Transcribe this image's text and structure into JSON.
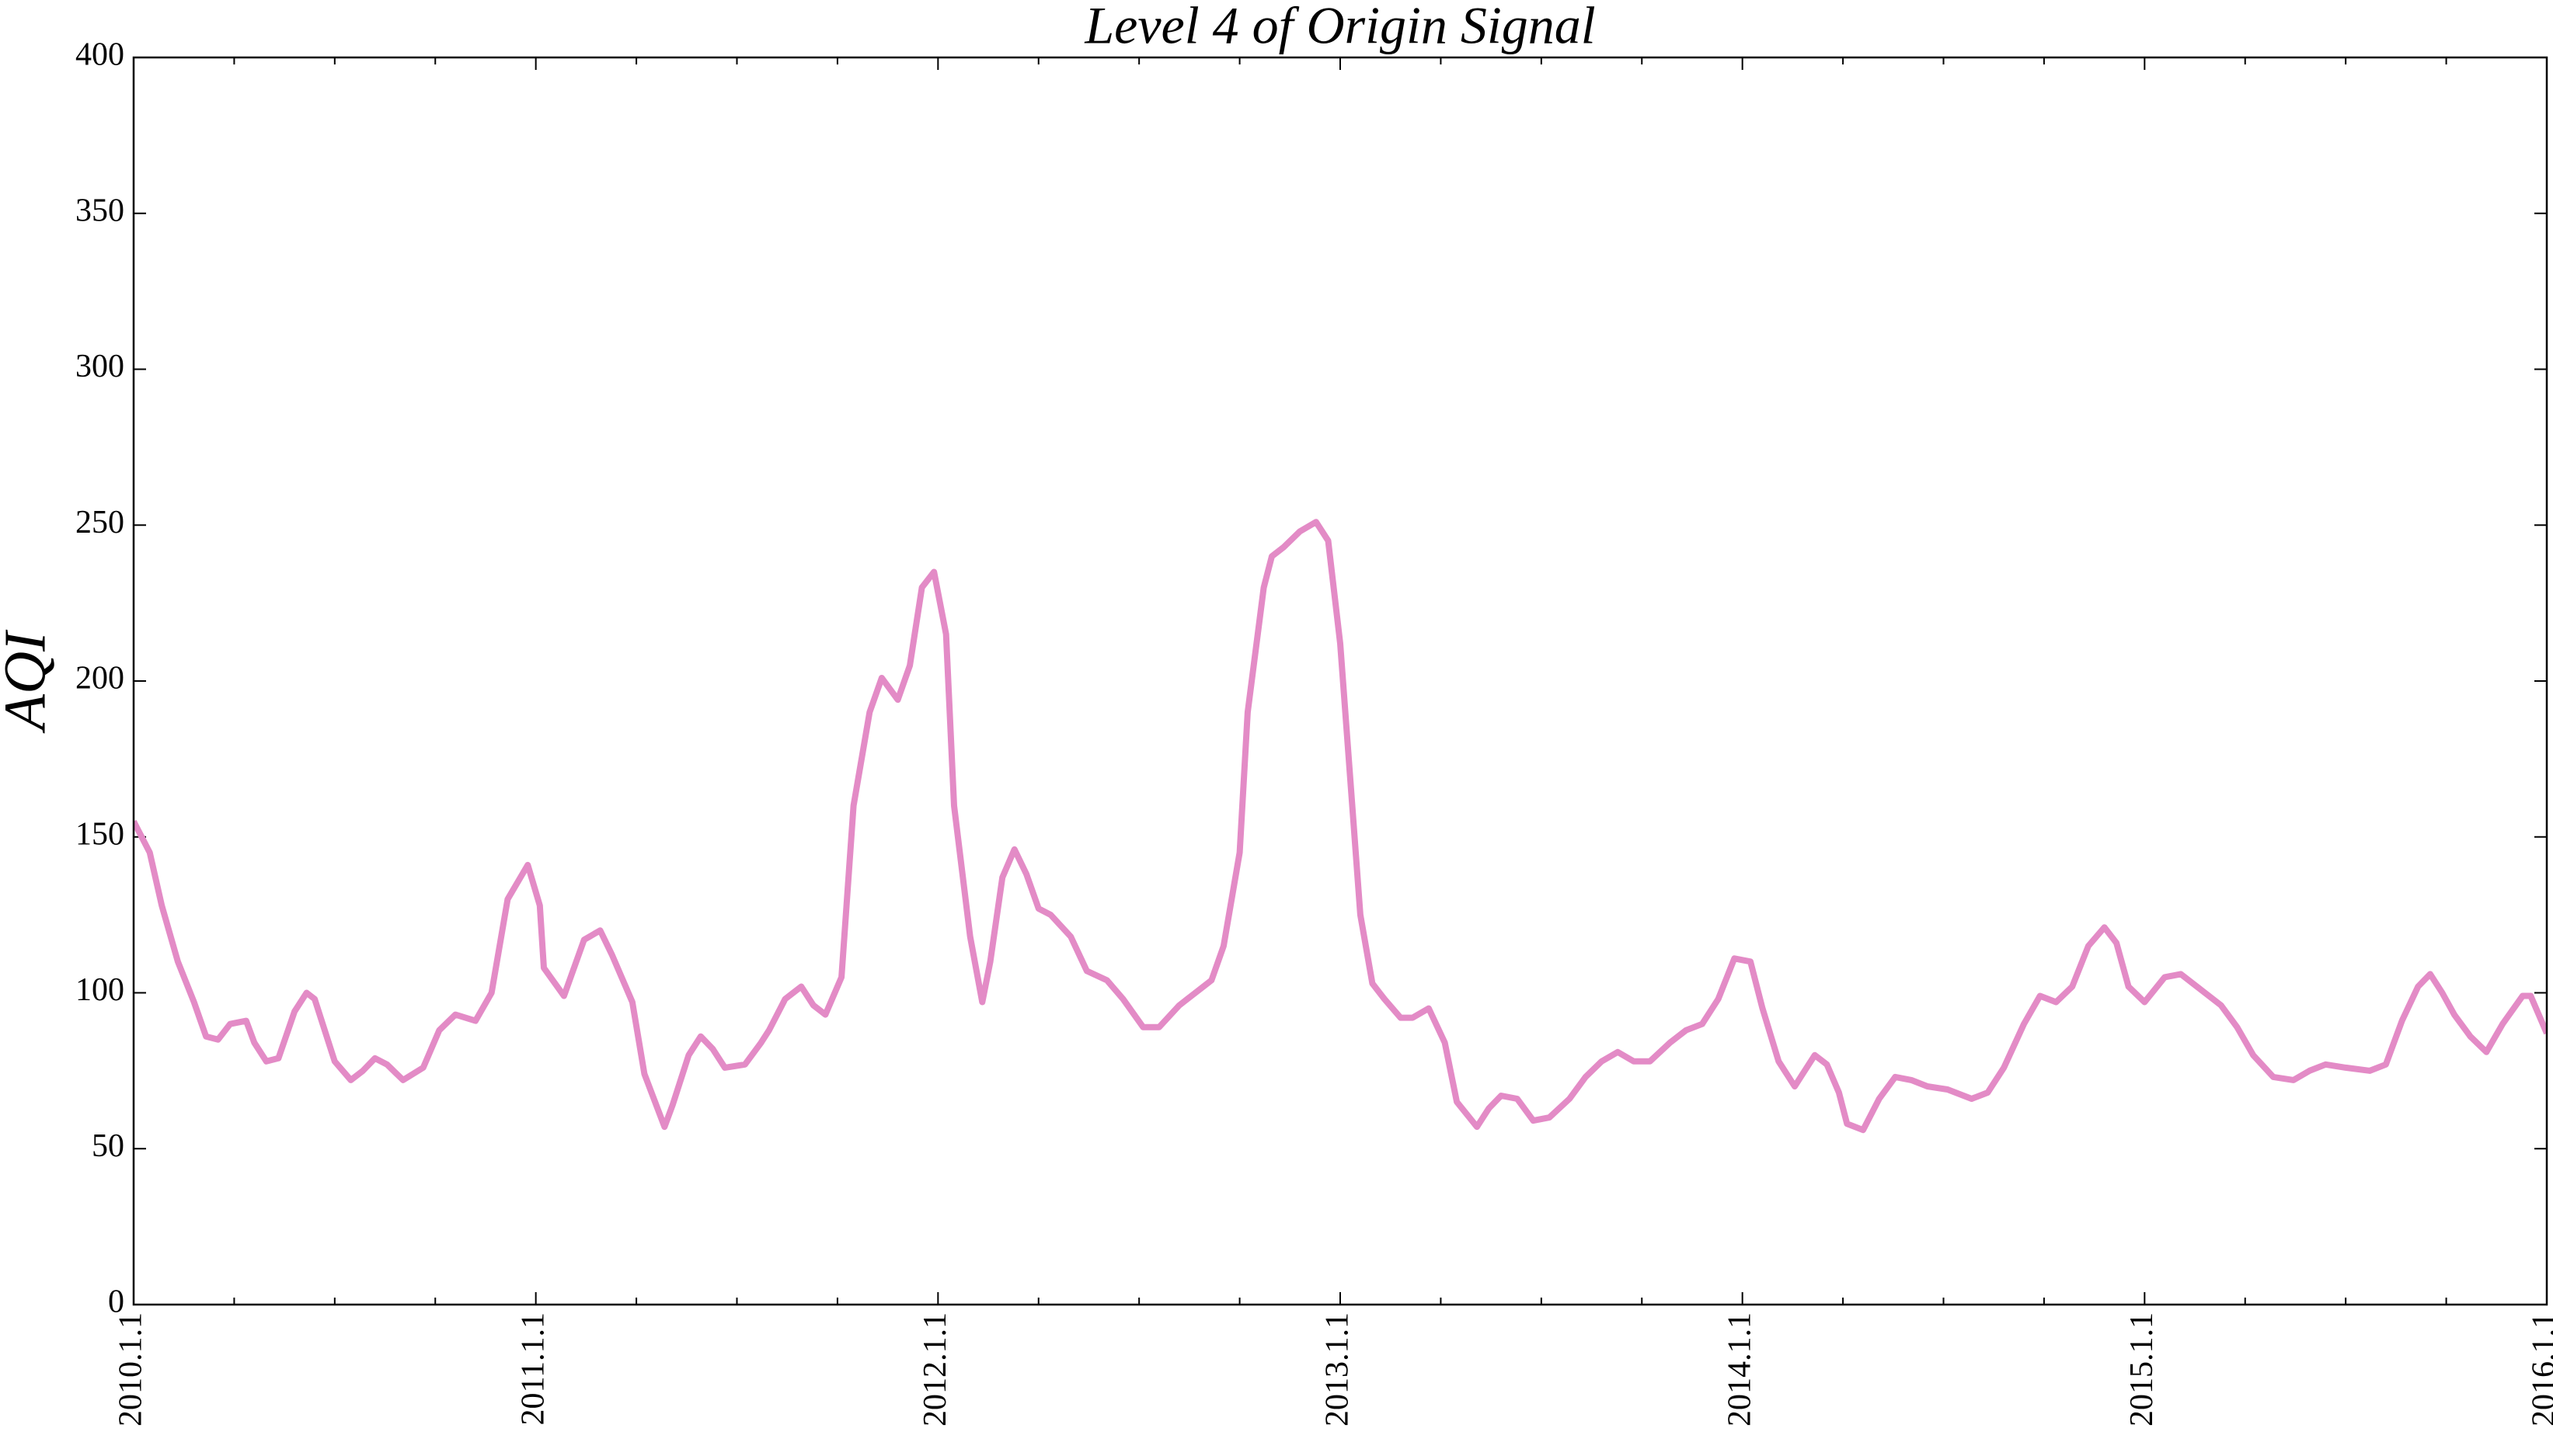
{
  "chart_data": {
    "type": "line",
    "title": "Level 4 of Origin Signal",
    "y_label": "AQI",
    "xlim": [
      2010,
      2016
    ],
    "ylim": [
      0,
      400
    ],
    "xticks": [
      {
        "value": 2010,
        "label": "2010.1.1"
      },
      {
        "value": 2011,
        "label": "2011.1.1"
      },
      {
        "value": 2012,
        "label": "2012.1.1"
      },
      {
        "value": 2013,
        "label": "2013.1.1"
      },
      {
        "value": 2014,
        "label": "2014.1.1"
      },
      {
        "value": 2015,
        "label": "2015.1.1"
      },
      {
        "value": 2016,
        "label": "2016.1.1"
      }
    ],
    "x_minor_ticks": [
      2010.25,
      2010.5,
      2010.75,
      2011.25,
      2011.5,
      2011.75,
      2012.25,
      2012.5,
      2012.75,
      2013.25,
      2013.5,
      2013.75,
      2014.25,
      2014.5,
      2014.75,
      2015.25,
      2015.5,
      2015.75
    ],
    "yticks": [
      0,
      50,
      100,
      150,
      200,
      250,
      300,
      350,
      400
    ],
    "grid": false,
    "series": [
      {
        "color": "#e38bc6",
        "x": [
          2010.0,
          2010.04,
          2010.07,
          2010.11,
          2010.15,
          2010.18,
          2010.21,
          2010.24,
          2010.28,
          2010.3,
          2010.33,
          2010.36,
          2010.4,
          2010.43,
          2010.45,
          2010.5,
          2010.54,
          2010.57,
          2010.6,
          2010.63,
          2010.67,
          2010.72,
          2010.76,
          2010.8,
          2010.85,
          2010.89,
          2010.93,
          2010.98,
          2011.01,
          2011.02,
          2011.07,
          2011.12,
          2011.16,
          2011.19,
          2011.24,
          2011.27,
          2011.32,
          2011.34,
          2011.38,
          2011.41,
          2011.44,
          2011.47,
          2011.52,
          2011.56,
          2011.58,
          2011.62,
          2011.66,
          2011.69,
          2011.72,
          2011.76,
          2011.79,
          2011.83,
          2011.86,
          2011.9,
          2011.93,
          2011.96,
          2011.99,
          2012.02,
          2012.04,
          2012.08,
          2012.11,
          2012.13,
          2012.16,
          2012.19,
          2012.22,
          2012.25,
          2012.28,
          2012.33,
          2012.37,
          2012.42,
          2012.46,
          2012.51,
          2012.55,
          2012.6,
          2012.64,
          2012.68,
          2012.71,
          2012.75,
          2012.77,
          2012.81,
          2012.83,
          2012.86,
          2012.9,
          2012.94,
          2012.97,
          2013.0,
          2013.03,
          2013.05,
          2013.08,
          2013.11,
          2013.15,
          2013.18,
          2013.22,
          2013.26,
          2013.29,
          2013.34,
          2013.37,
          2013.4,
          2013.44,
          2013.48,
          2013.52,
          2013.57,
          2013.61,
          2013.65,
          2013.69,
          2013.73,
          2013.77,
          2013.82,
          2013.86,
          2013.9,
          2013.94,
          2013.98,
          2014.02,
          2014.05,
          2014.09,
          2014.13,
          2014.15,
          2014.18,
          2014.21,
          2014.24,
          2014.26,
          2014.3,
          2014.34,
          2014.38,
          2014.42,
          2014.46,
          2014.51,
          2014.57,
          2014.61,
          2014.65,
          2014.7,
          2014.74,
          2014.78,
          2014.82,
          2014.86,
          2014.9,
          2014.93,
          2014.96,
          2015.0,
          2015.05,
          2015.09,
          2015.14,
          2015.19,
          2015.23,
          2015.27,
          2015.32,
          2015.37,
          2015.41,
          2015.45,
          2015.5,
          2015.56,
          2015.6,
          2015.64,
          2015.68,
          2015.71,
          2015.74,
          2015.77,
          2015.81,
          2015.85,
          2015.89,
          2015.94,
          2015.96,
          2016.0
        ],
        "values": [
          155,
          145,
          128,
          110,
          97,
          86,
          85,
          90,
          91,
          84,
          78,
          79,
          94,
          100,
          98,
          78,
          72,
          75,
          79,
          77,
          72,
          76,
          88,
          93,
          91,
          100,
          130,
          141,
          128,
          108,
          99,
          117,
          120,
          112,
          97,
          74,
          57,
          64,
          80,
          86,
          82,
          76,
          77,
          84,
          88,
          98,
          102,
          96,
          93,
          105,
          160,
          190,
          201,
          194,
          205,
          230,
          235,
          215,
          160,
          118,
          97,
          110,
          137,
          146,
          138,
          127,
          125,
          118,
          107,
          104,
          98,
          89,
          89,
          96,
          100,
          104,
          115,
          145,
          190,
          230,
          240,
          243,
          248,
          251,
          245,
          212,
          160,
          125,
          103,
          98,
          92,
          92,
          95,
          84,
          65,
          57,
          63,
          67,
          66,
          59,
          60,
          66,
          73,
          78,
          81,
          78,
          78,
          84,
          88,
          90,
          98,
          111,
          110,
          95,
          78,
          70,
          74,
          80,
          77,
          68,
          58,
          56,
          66,
          73,
          72,
          70,
          69,
          66,
          68,
          76,
          90,
          99,
          97,
          102,
          115,
          121,
          116,
          102,
          97,
          105,
          106,
          101,
          96,
          89,
          80,
          73,
          72,
          75,
          77,
          76,
          75,
          77,
          91,
          102,
          106,
          100,
          93,
          86,
          81,
          90,
          99,
          99,
          87
        ]
      }
    ]
  }
}
